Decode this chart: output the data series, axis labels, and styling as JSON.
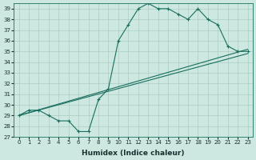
{
  "xlabel": "Humidex (Indice chaleur)",
  "xlim": [
    -0.5,
    23.5
  ],
  "ylim": [
    27,
    39.5
  ],
  "yticks": [
    27,
    28,
    29,
    30,
    31,
    32,
    33,
    34,
    35,
    36,
    37,
    38,
    39
  ],
  "xticks": [
    0,
    1,
    2,
    3,
    4,
    5,
    6,
    7,
    8,
    9,
    10,
    11,
    12,
    13,
    14,
    15,
    16,
    17,
    18,
    19,
    20,
    21,
    22,
    23
  ],
  "bg_color": "#cce8e0",
  "grid_color": "#aaccc4",
  "line_color": "#1a6e5e",
  "line1_x": [
    0,
    1,
    2,
    3,
    4,
    5,
    6,
    7,
    8,
    9,
    10,
    11,
    12,
    13,
    14,
    15,
    16,
    17,
    18,
    19,
    20,
    21,
    22,
    23
  ],
  "line1_y": [
    29.0,
    29.5,
    29.5,
    29.0,
    28.5,
    28.5,
    27.5,
    27.5,
    30.5,
    31.5,
    36.0,
    37.5,
    39.0,
    39.5,
    39.0,
    39.0,
    38.5,
    38.0,
    39.0,
    38.0,
    37.5,
    35.5,
    35.0,
    35.0
  ],
  "line2_x": [
    0,
    23
  ],
  "line2_y": [
    29.0,
    34.8
  ],
  "line3_x": [
    0,
    23
  ],
  "line3_y": [
    29.0,
    35.2
  ]
}
